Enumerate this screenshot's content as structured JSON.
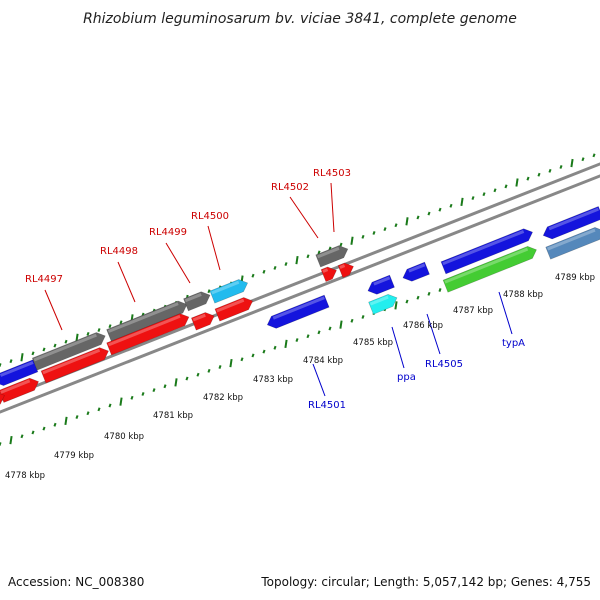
{
  "title": "Rhizobium leguminosarum bv. viciae 3841, complete genome",
  "footer": {
    "accession": "Accession: NC_008380",
    "summary": "Topology: circular; Length: 5,057,142 bp; Genes: 4,755"
  },
  "colors": {
    "backbone": "#888888",
    "ticks": "#1a7a1a",
    "red_gene": "#ee1111",
    "blue_gene": "#1414dd",
    "gray_gene": "#666666",
    "sky_gene": "#22bbee",
    "cyan_gene": "#22eeee",
    "green_gene": "#44cc33",
    "steel_gene": "#5588bb",
    "forward_label": "#cc0000",
    "reverse_label": "#0000cc"
  },
  "scale_labels": [
    "4778 kbp",
    "4779 kbp",
    "4780 kbp",
    "4781 kbp",
    "4782 kbp",
    "4783 kbp",
    "4784 kbp",
    "4785 kbp",
    "4786 kbp",
    "4787 kbp",
    "4788 kbp",
    "4789 kbp"
  ],
  "forward_labels": [
    "RL4497",
    "RL4498",
    "RL4499",
    "RL4500",
    "RL4502",
    "RL4503"
  ],
  "reverse_labels": [
    "RL4501",
    "ppa",
    "RL4505",
    "typA"
  ]
}
